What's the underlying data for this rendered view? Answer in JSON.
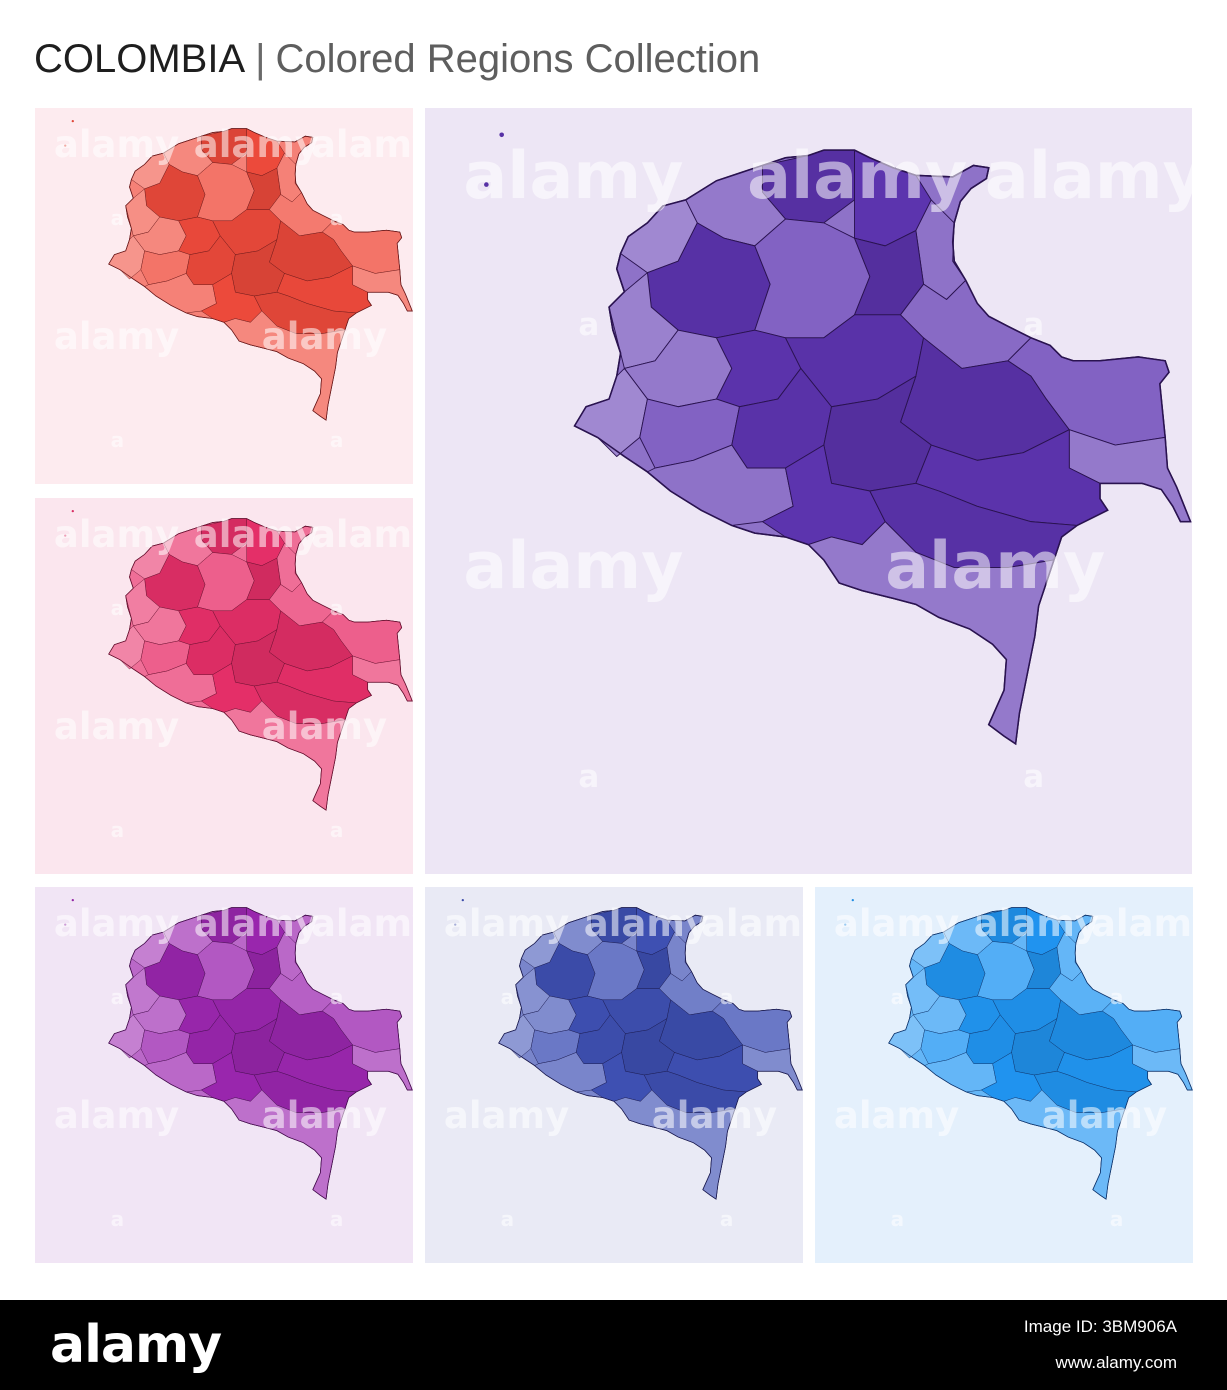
{
  "header": {
    "country": "COLOMBIA",
    "separator": "|",
    "subtitle": "Colored Regions Collection"
  },
  "panels": [
    {
      "id": "red",
      "bg": "#fdebef",
      "fill": "#f04b3c"
    },
    {
      "id": "pink",
      "bg": "#fbe6ee",
      "fill": "#e8306a"
    },
    {
      "id": "violet",
      "bg": "#ede6f5",
      "fill": "#5e35b1"
    },
    {
      "id": "purple",
      "bg": "#f1e5f5",
      "fill": "#9c27b0"
    },
    {
      "id": "indigo",
      "bg": "#e9eaf5",
      "fill": "#3f51b5"
    },
    {
      "id": "blue",
      "bg": "#e4f0fc",
      "fill": "#2196f3"
    }
  ],
  "watermark": "alamy",
  "footer": {
    "brand": "alamy",
    "image_id": "Image ID: 3BM906A",
    "url": "www.alamy.com"
  }
}
